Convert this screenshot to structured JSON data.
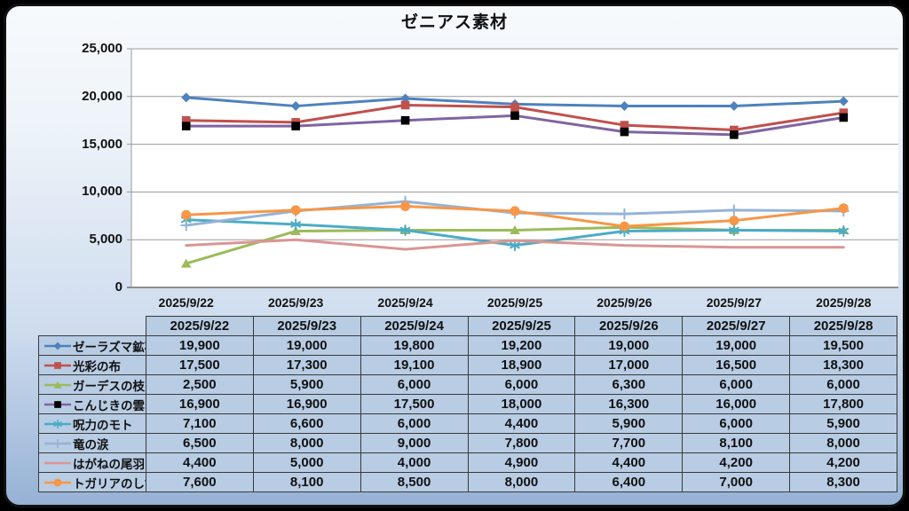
{
  "chart_data": {
    "type": "line",
    "title": "ゼニアス素材",
    "xlabel": "",
    "ylabel": "",
    "categories": [
      "2025/9/22",
      "2025/9/23",
      "2025/9/24",
      "2025/9/25",
      "2025/9/26",
      "2025/9/27",
      "2025/9/28"
    ],
    "series": [
      {
        "name": "ゼーラズマ鉱石",
        "color": "#4F81BD",
        "marker": "diamond",
        "marker_color": "#4F81BD",
        "values": [
          19900,
          19000,
          19800,
          19200,
          19000,
          19000,
          19500
        ]
      },
      {
        "name": "光彩の布",
        "color": "#C0504D",
        "marker": "square",
        "marker_color": "#C0504D",
        "values": [
          17500,
          17300,
          19100,
          18900,
          17000,
          16500,
          18300
        ]
      },
      {
        "name": "ガーデスの枝",
        "color": "#9BBB59",
        "marker": "triangle",
        "marker_color": "#9BBB59",
        "values": [
          2500,
          5900,
          6000,
          6000,
          6300,
          6000,
          6000
        ]
      },
      {
        "name": "こんじきの雲",
        "color": "#8064A2",
        "marker": "square",
        "marker_color": "#000000",
        "values": [
          16900,
          16900,
          17500,
          18000,
          16300,
          16000,
          17800
        ]
      },
      {
        "name": "呪力のモト",
        "color": "#4BACC6",
        "marker": "asterisk",
        "marker_color": "#4BACC6",
        "values": [
          7100,
          6600,
          6000,
          4400,
          5900,
          6000,
          5900
        ]
      },
      {
        "name": "竜の涙",
        "color": "#95B3D7",
        "marker": "plus",
        "marker_color": "#95B3D7",
        "values": [
          6500,
          8000,
          9000,
          7800,
          7700,
          8100,
          8000
        ]
      },
      {
        "name": "はがねの尾羽",
        "color": "#D99694",
        "marker": "none",
        "marker_color": "#D99694",
        "values": [
          4400,
          5000,
          4000,
          4900,
          4400,
          4200,
          4200
        ]
      },
      {
        "name": "トガリアのしずく",
        "color": "#F79646",
        "marker": "circle",
        "marker_color": "#F79646",
        "values": [
          7600,
          8100,
          8500,
          8000,
          6400,
          7000,
          8300
        ]
      }
    ],
    "ylim": [
      0,
      25000
    ],
    "y_tick_step": 5000,
    "grid": true,
    "legend_position": "table-first-column"
  },
  "colors": {
    "canvas_background": "#000000",
    "frame_gradient_top": "#F7FAFD",
    "frame_gradient_bottom": "#96B1D4",
    "frame_border": "#111111",
    "plot_background": "#FFFFFF",
    "grid_line": "#9A9A9A",
    "axis_line": "#6E6E6E",
    "table_cell_fill": "#B8CCE4",
    "table_border": "#3A3A3A",
    "text": "#111111"
  }
}
